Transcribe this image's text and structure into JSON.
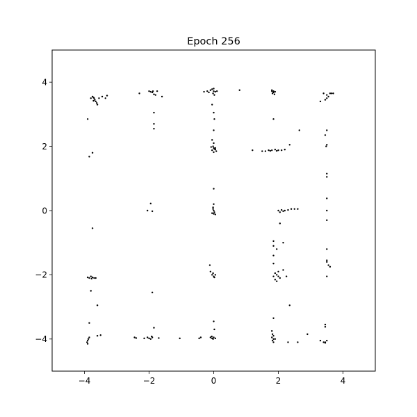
{
  "chart_data": {
    "type": "scatter",
    "title": "Epoch 256",
    "xlabel": "",
    "ylabel": "",
    "xlim": [
      -5,
      5
    ],
    "ylim": [
      -5,
      5
    ],
    "grid": false,
    "x_ticks": [
      -4,
      -2,
      0,
      2,
      4
    ],
    "y_ticks": [
      4,
      2,
      0,
      -2,
      -4
    ],
    "x_tick_labels": [
      "−4",
      "−2",
      "0",
      "2",
      "4"
    ],
    "y_tick_labels": [
      "4",
      "2",
      "0",
      "−2",
      "−4"
    ],
    "point_color": "#000000",
    "points": [
      [
        -3.75,
        3.55
      ],
      [
        -3.72,
        3.52
      ],
      [
        -3.7,
        3.5
      ],
      [
        -3.68,
        3.45
      ],
      [
        -3.65,
        3.4
      ],
      [
        -3.62,
        3.35
      ],
      [
        -3.6,
        3.3
      ],
      [
        -3.55,
        3.5
      ],
      [
        -3.45,
        3.55
      ],
      [
        -3.35,
        3.5
      ],
      [
        -3.3,
        3.58
      ],
      [
        -3.8,
        3.5
      ],
      [
        -3.72,
        3.42
      ],
      [
        -2.0,
        3.72
      ],
      [
        -1.95,
        3.7
      ],
      [
        -1.9,
        3.68
      ],
      [
        -1.85,
        3.62
      ],
      [
        -1.8,
        3.6
      ],
      [
        -1.75,
        3.72
      ],
      [
        -1.6,
        3.55
      ],
      [
        -2.3,
        3.65
      ],
      [
        -1.88,
        3.72
      ],
      [
        -0.3,
        3.7
      ],
      [
        -0.2,
        3.72
      ],
      [
        -0.1,
        3.75
      ],
      [
        -0.05,
        3.78
      ],
      [
        0.0,
        3.72
      ],
      [
        0.05,
        3.7
      ],
      [
        0.1,
        3.72
      ],
      [
        -0.02,
        3.65
      ],
      [
        0.02,
        3.6
      ],
      [
        0.8,
        3.75
      ],
      [
        -0.15,
        3.68
      ],
      [
        0.0,
        3.8
      ],
      [
        1.8,
        3.75
      ],
      [
        1.85,
        3.72
      ],
      [
        1.9,
        3.7
      ],
      [
        1.82,
        3.65
      ],
      [
        1.88,
        3.62
      ],
      [
        1.85,
        3.68
      ],
      [
        1.8,
        3.72
      ],
      [
        3.4,
        3.65
      ],
      [
        3.5,
        3.6
      ],
      [
        3.55,
        3.55
      ],
      [
        3.6,
        3.65
      ],
      [
        3.65,
        3.65
      ],
      [
        3.7,
        3.65
      ],
      [
        3.3,
        3.4
      ],
      [
        3.45,
        3.45
      ],
      [
        3.5,
        3.5
      ],
      [
        -3.9,
        2.85
      ],
      [
        -3.85,
        1.68
      ],
      [
        -3.75,
        1.8
      ],
      [
        -1.85,
        3.05
      ],
      [
        -1.85,
        2.7
      ],
      [
        -1.85,
        2.55
      ],
      [
        -0.05,
        3.3
      ],
      [
        0.0,
        3.05
      ],
      [
        0.02,
        2.85
      ],
      [
        0.0,
        2.5
      ],
      [
        -0.05,
        2.2
      ],
      [
        0.0,
        2.1
      ],
      [
        -0.02,
        2.0
      ],
      [
        0.0,
        1.95
      ],
      [
        0.05,
        1.9
      ],
      [
        -0.05,
        1.88
      ],
      [
        0.02,
        1.92
      ],
      [
        0.08,
        1.85
      ],
      [
        -0.08,
        1.98
      ],
      [
        0.05,
        1.95
      ],
      [
        0.0,
        1.82
      ],
      [
        1.85,
        2.85
      ],
      [
        1.2,
        1.88
      ],
      [
        1.5,
        1.85
      ],
      [
        1.6,
        1.85
      ],
      [
        1.7,
        1.88
      ],
      [
        1.8,
        1.88
      ],
      [
        1.9,
        1.9
      ],
      [
        2.0,
        1.88
      ],
      [
        2.1,
        1.88
      ],
      [
        2.2,
        1.9
      ],
      [
        2.35,
        2.05
      ],
      [
        2.65,
        2.5
      ],
      [
        1.75,
        1.86
      ],
      [
        1.95,
        1.86
      ],
      [
        3.5,
        2.5
      ],
      [
        3.45,
        2.35
      ],
      [
        3.5,
        2.05
      ],
      [
        3.48,
        2.0
      ],
      [
        3.5,
        1.15
      ],
      [
        3.5,
        1.05
      ],
      [
        3.5,
        0.38
      ],
      [
        0.0,
        0.68
      ],
      [
        0.0,
        0.2
      ],
      [
        -0.02,
        0.05
      ],
      [
        0.0,
        0.0
      ],
      [
        0.02,
        -0.05
      ],
      [
        -0.05,
        -0.08
      ],
      [
        0.05,
        -0.12
      ],
      [
        0.0,
        -0.1
      ],
      [
        -0.02,
        0.1
      ],
      [
        -1.95,
        0.22
      ],
      [
        -2.05,
        0.0
      ],
      [
        -1.9,
        -0.02
      ],
      [
        2.0,
        0.0
      ],
      [
        2.1,
        0.02
      ],
      [
        2.2,
        0.0
      ],
      [
        2.3,
        0.02
      ],
      [
        2.4,
        0.05
      ],
      [
        2.5,
        0.05
      ],
      [
        2.6,
        0.05
      ],
      [
        2.05,
        -0.05
      ],
      [
        2.15,
        -0.02
      ],
      [
        -3.75,
        -0.55
      ],
      [
        2.05,
        -0.4
      ],
      [
        3.5,
        0.0
      ],
      [
        3.5,
        -0.3
      ],
      [
        1.85,
        -0.95
      ],
      [
        1.85,
        -1.1
      ],
      [
        1.85,
        -1.4
      ],
      [
        1.85,
        -1.65
      ],
      [
        1.9,
        -1.95
      ],
      [
        1.95,
        -2.0
      ],
      [
        1.85,
        -2.05
      ],
      [
        2.0,
        -2.05
      ],
      [
        2.05,
        -2.1
      ],
      [
        1.9,
        -2.15
      ],
      [
        1.95,
        -2.2
      ],
      [
        2.0,
        -1.9
      ],
      [
        2.15,
        -1.85
      ],
      [
        2.25,
        -2.05
      ],
      [
        1.95,
        -1.2
      ],
      [
        2.15,
        -1.0
      ],
      [
        3.5,
        -1.2
      ],
      [
        3.5,
        -1.55
      ],
      [
        3.55,
        -1.7
      ],
      [
        3.6,
        -1.75
      ],
      [
        3.5,
        -1.6
      ],
      [
        3.5,
        -2.05
      ],
      [
        -3.9,
        -2.08
      ],
      [
        -3.85,
        -2.1
      ],
      [
        -3.8,
        -2.05
      ],
      [
        -3.75,
        -2.08
      ],
      [
        -3.7,
        -2.1
      ],
      [
        -3.65,
        -2.1
      ],
      [
        -3.78,
        -2.12
      ],
      [
        -0.12,
        -1.7
      ],
      [
        -0.1,
        -1.9
      ],
      [
        -0.05,
        -2.0
      ],
      [
        0.0,
        -2.05
      ],
      [
        0.02,
        -2.08
      ],
      [
        -0.02,
        -1.95
      ],
      [
        0.05,
        -2.0
      ],
      [
        -3.8,
        -2.5
      ],
      [
        -3.6,
        -2.95
      ],
      [
        -1.9,
        -2.55
      ],
      [
        2.35,
        -2.95
      ],
      [
        1.85,
        -3.35
      ],
      [
        -3.85,
        -3.5
      ],
      [
        -3.6,
        -3.9
      ],
      [
        -3.5,
        -3.88
      ],
      [
        -3.85,
        -3.95
      ],
      [
        -3.9,
        -4.05
      ],
      [
        -3.92,
        -4.1
      ],
      [
        -3.9,
        -4.15
      ],
      [
        -3.88,
        -4.0
      ],
      [
        -2.45,
        -3.95
      ],
      [
        -2.4,
        -3.97
      ],
      [
        -2.15,
        -3.98
      ],
      [
        -2.05,
        -3.95
      ],
      [
        -2.0,
        -3.98
      ],
      [
        -1.95,
        -4.0
      ],
      [
        -1.9,
        -3.95
      ],
      [
        -1.85,
        -3.65
      ],
      [
        -1.7,
        -3.97
      ],
      [
        -1.05,
        -3.98
      ],
      [
        -1.92,
        -3.92
      ],
      [
        -0.45,
        -3.98
      ],
      [
        -0.4,
        -3.95
      ],
      [
        -0.1,
        -3.95
      ],
      [
        -0.05,
        -3.98
      ],
      [
        0.0,
        -3.95
      ],
      [
        0.05,
        -3.98
      ],
      [
        -0.02,
        -4.0
      ],
      [
        0.02,
        -3.7
      ],
      [
        0.0,
        -3.45
      ],
      [
        -0.06,
        -3.92
      ],
      [
        1.8,
        -3.75
      ],
      [
        1.82,
        -3.85
      ],
      [
        1.85,
        -3.9
      ],
      [
        1.8,
        -3.95
      ],
      [
        1.85,
        -4.0
      ],
      [
        1.82,
        -4.05
      ],
      [
        1.85,
        -4.1
      ],
      [
        1.9,
        -4.0
      ],
      [
        2.3,
        -4.1
      ],
      [
        2.6,
        -4.1
      ],
      [
        2.9,
        -3.85
      ],
      [
        3.3,
        -4.05
      ],
      [
        3.4,
        -4.1
      ],
      [
        3.45,
        -4.12
      ],
      [
        3.5,
        -4.05
      ],
      [
        3.45,
        -4.1
      ],
      [
        3.45,
        -3.55
      ],
      [
        3.45,
        -3.62
      ]
    ]
  }
}
